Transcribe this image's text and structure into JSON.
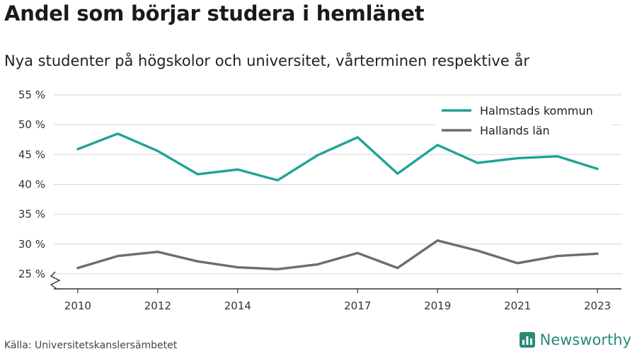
{
  "title": "Andel som börjar studera i hemlänet",
  "subtitle": "Nya studenter på högskolor och universitet, vårterminen respektive år",
  "source": "Källa: Universitetskanslersämbetet",
  "brand": {
    "name": "Newsworthy",
    "icon": "bar-chart-logo-icon",
    "color": "#2a8a78"
  },
  "chart_data": {
    "type": "line",
    "x": [
      2010,
      2011,
      2012,
      2013,
      2014,
      2015,
      2016,
      2017,
      2018,
      2019,
      2020,
      2021,
      2022,
      2023
    ],
    "x_tick_labels": [
      "2010",
      "2012",
      "2014",
      "2017",
      "2019",
      "2021",
      "2023"
    ],
    "x_ticks": [
      2010,
      2012,
      2014,
      2017,
      2019,
      2021,
      2023
    ],
    "y_tick_labels": [
      "55 %",
      "50 %",
      "45 %",
      "40 %",
      "35 %",
      "30 %",
      "25 %"
    ],
    "y_ticks": [
      55,
      50,
      45,
      40,
      35,
      30,
      25
    ],
    "ylim": [
      22.5,
      55
    ],
    "xlim": [
      2009.4,
      2023.6
    ],
    "y_axis_break": true,
    "grid": true,
    "legend_position": "top-right",
    "series": [
      {
        "name": "Halmstads kommun",
        "color": "#1fa397",
        "values": [
          45.9,
          48.5,
          45.6,
          41.7,
          42.5,
          40.7,
          44.9,
          47.9,
          41.8,
          46.6,
          43.6,
          44.4,
          44.7,
          42.6
        ]
      },
      {
        "name": "Hallands län",
        "color": "#6d6c72",
        "values": [
          26.0,
          28.0,
          28.7,
          27.1,
          26.1,
          25.8,
          26.6,
          28.5,
          26.0,
          30.6,
          28.9,
          26.8,
          28.0,
          28.4
        ]
      }
    ]
  }
}
